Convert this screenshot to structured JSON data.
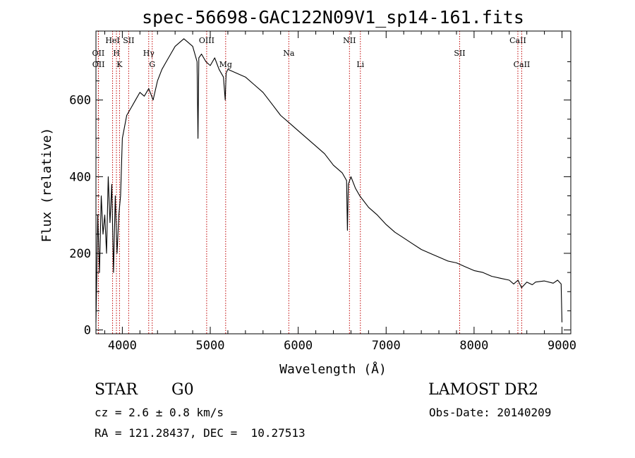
{
  "chart_data": {
    "type": "line",
    "title": "spec-56698-GAC122N09V1_sp14-161.fits",
    "xlabel": "Wavelength (Å)",
    "ylabel": "Flux (relative)",
    "xlim": [
      3700,
      9100
    ],
    "ylim": [
      -10,
      780
    ],
    "x_ticks": [
      4000,
      5000,
      6000,
      7000,
      8000,
      9000
    ],
    "y_ticks": [
      0,
      200,
      400,
      600
    ],
    "grid": false,
    "series": [
      {
        "x": [
          3700,
          3720,
          3740,
          3760,
          3780,
          3800,
          3820,
          3840,
          3860,
          3880,
          3900,
          3920,
          3940,
          3960,
          3980,
          4000,
          4050,
          4100,
          4150,
          4200,
          4250,
          4300,
          4350,
          4400,
          4450,
          4500,
          4550,
          4600,
          4650,
          4700,
          4750,
          4800,
          4850,
          4860,
          4870,
          4900,
          4950,
          5000,
          5050,
          5100,
          5150,
          5170,
          5180,
          5200,
          5250,
          5300,
          5400,
          5500,
          5600,
          5700,
          5800,
          5900,
          6000,
          6100,
          6200,
          6300,
          6400,
          6500,
          6550,
          6560,
          6570,
          6600,
          6650,
          6700,
          6800,
          6900,
          7000,
          7100,
          7200,
          7300,
          7400,
          7500,
          7600,
          7700,
          7800,
          7900,
          8000,
          8100,
          8200,
          8300,
          8400,
          8450,
          8500,
          8540,
          8600,
          8662,
          8700,
          8800,
          8900,
          8950,
          8990,
          9000
        ],
        "y": [
          20,
          300,
          150,
          350,
          250,
          300,
          200,
          400,
          280,
          380,
          150,
          350,
          200,
          300,
          350,
          500,
          560,
          580,
          600,
          620,
          610,
          630,
          600,
          650,
          680,
          700,
          720,
          740,
          750,
          760,
          750,
          740,
          700,
          500,
          710,
          720,
          700,
          690,
          710,
          680,
          660,
          600,
          670,
          680,
          675,
          670,
          660,
          640,
          620,
          590,
          560,
          540,
          520,
          500,
          480,
          460,
          430,
          410,
          390,
          260,
          380,
          400,
          370,
          350,
          320,
          300,
          275,
          255,
          240,
          225,
          210,
          200,
          190,
          180,
          175,
          165,
          155,
          150,
          140,
          135,
          130,
          120,
          130,
          110,
          125,
          118,
          125,
          128,
          122,
          130,
          120,
          20
        ]
      }
    ],
    "spectral_lines": [
      {
        "label": "OII",
        "wavelength": 3727,
        "row": 2
      },
      {
        "label": "OII",
        "wavelength": 3729,
        "row": 3
      },
      {
        "label": "HeI",
        "wavelength": 3889,
        "row": 1
      },
      {
        "label": "H",
        "wavelength": 3933,
        "row": 2
      },
      {
        "label": "K",
        "wavelength": 3968,
        "row": 3
      },
      {
        "label": "SII",
        "wavelength": 4072,
        "row": 1
      },
      {
        "label": "Hγ",
        "wavelength": 4300,
        "row": 2
      },
      {
        "label": "G",
        "wavelength": 4340,
        "row": 3
      },
      {
        "label": "OIII",
        "wavelength": 4959,
        "row": 1
      },
      {
        "label": "Mg",
        "wavelength": 5175,
        "row": 3
      },
      {
        "label": "Na",
        "wavelength": 5893,
        "row": 2
      },
      {
        "label": "NII",
        "wavelength": 6583,
        "row": 1
      },
      {
        "label": "Li",
        "wavelength": 6707,
        "row": 3
      },
      {
        "label": "SII",
        "wavelength": 7836,
        "row": 2
      },
      {
        "label": "CaII",
        "wavelength": 8498,
        "row": 1
      },
      {
        "label": "CaII",
        "wavelength": 8542,
        "row": 3
      }
    ]
  },
  "info": {
    "object_class": "STAR",
    "subclass": "G0",
    "survey": "LAMOST DR2",
    "redshift": "cz = 2.6 ± 0.8 km/s",
    "obs_date": "Obs-Date: 20140209",
    "coords": "RA = 121.28437, DEC =  10.27513"
  },
  "colors": {
    "spectrum": "#000000",
    "line_markers": "#c00000",
    "axes": "#000000"
  }
}
